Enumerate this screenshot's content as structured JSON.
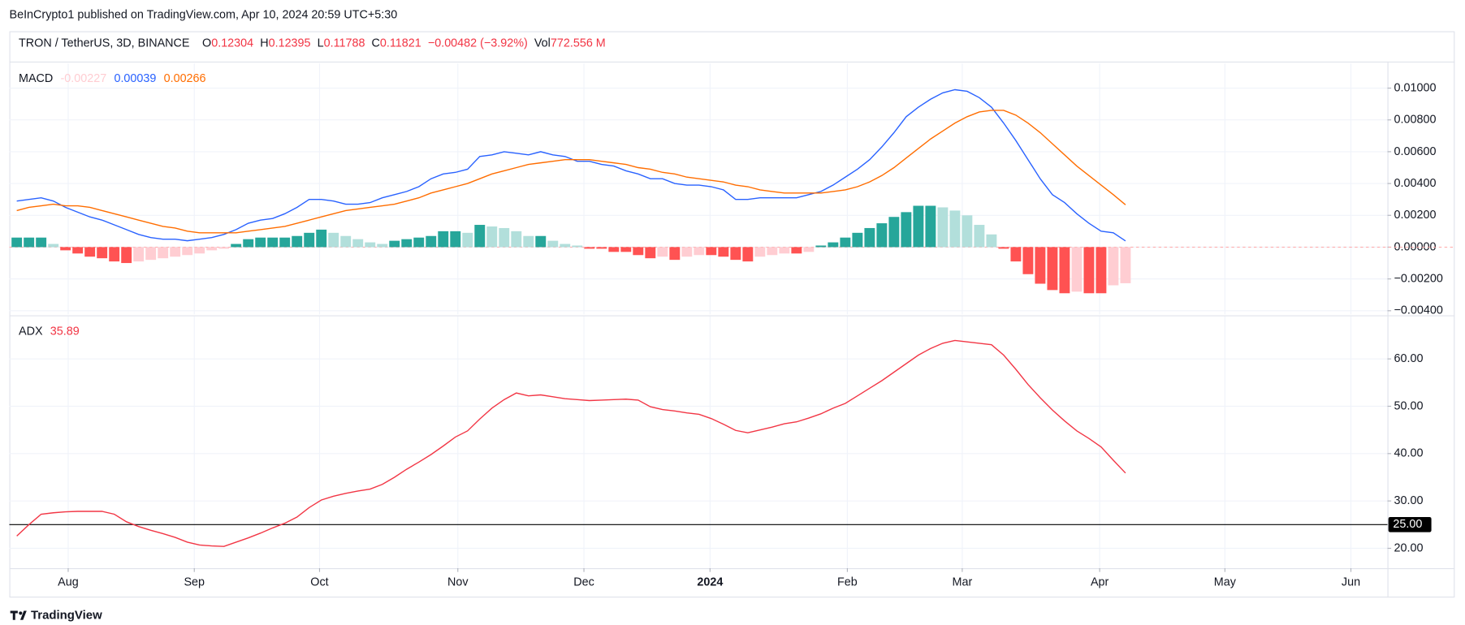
{
  "header": {
    "attribution": "BeInCrypto1 published on TradingView.com, Apr 10, 2024 20:59 UTC+5:30",
    "symbol": "TRON / TetherUS, 3D, BINANCE",
    "ohlc": [
      {
        "label": "O",
        "value": "0.12304"
      },
      {
        "label": "H",
        "value": "0.12395"
      },
      {
        "label": "L",
        "value": "0.11788"
      },
      {
        "label": "C",
        "value": "0.11821"
      }
    ],
    "change": "−0.00482 (−3.92%)",
    "volume_label": "Vol",
    "volume": "772.556 M"
  },
  "footer": {
    "brand": "TradingView"
  },
  "chart_data": [
    {
      "type": "macd",
      "title": "MACD",
      "xlim": [
        -0.61,
        112.5
      ],
      "ylim": [
        -0.00423,
        0.01155
      ],
      "yticks": [
        {
          "value": -0.004,
          "label": "−0.00400"
        },
        {
          "value": -0.002,
          "label": "−0.00200"
        },
        {
          "value": 0,
          "label": "0.00000"
        },
        {
          "value": 0.002,
          "label": "0.00200"
        },
        {
          "value": 0.004,
          "label": "0.00400"
        },
        {
          "value": 0.006,
          "label": "0.00600"
        },
        {
          "value": 0.008,
          "label": "0.00800"
        },
        {
          "value": 0.01,
          "label": "0.01000"
        }
      ],
      "grid": true,
      "series": [
        {
          "style": "histogram",
          "color": "#ffcdd2",
          "colors": [
            "#26a69a",
            "#b2dfdb",
            "#ff5252",
            "#ffcdd2"
          ],
          "values": [
            0.0006,
            0.0006,
            0.0006,
            0.0002,
            -0.0002,
            -0.0004,
            -0.0006,
            -0.0007,
            -0.0009,
            -0.001,
            -0.0009,
            -0.0008,
            -0.0007,
            -0.0006,
            -0.0005,
            -0.0004,
            -0.0002,
            -0.0001,
            0.0002,
            0.0005,
            0.0006,
            0.0006,
            0.0006,
            0.0007,
            0.0009,
            0.0011,
            0.0009,
            0.0007,
            0.0005,
            0.0003,
            0.0002,
            0.0004,
            0.0005,
            0.0006,
            0.0007,
            0.001,
            0.001,
            0.0009,
            0.0014,
            0.0013,
            0.0012,
            0.001,
            0.0007,
            0.0007,
            0.0004,
            0.0002,
            0.0001,
            -0.0001,
            -0.0001,
            -0.0003,
            -0.0003,
            -0.0005,
            -0.0007,
            -0.0006,
            -0.0008,
            -0.0006,
            -0.0005,
            -0.0005,
            -0.0006,
            -0.0008,
            -0.0009,
            -0.0006,
            -0.0005,
            -0.0004,
            -0.0004,
            -0.0003,
            0.0001,
            0.0003,
            0.0006,
            0.0009,
            0.0012,
            0.0015,
            0.0019,
            0.0022,
            0.0026,
            0.0026,
            0.0025,
            0.0023,
            0.002,
            0.0014,
            0.0008,
            -0.0001,
            -0.0009,
            -0.0017,
            -0.0023,
            -0.0027,
            -0.0029,
            -0.0028,
            -0.0029,
            -0.0029,
            -0.0024,
            -0.00227
          ]
        },
        {
          "style": "line",
          "color": "#2962ff",
          "values": [
            0.0029,
            0.003,
            0.0031,
            0.0029,
            0.0025,
            0.0022,
            0.0019,
            0.0017,
            0.0014,
            0.0011,
            0.0008,
            0.0006,
            0.0005,
            0.0005,
            0.0004,
            0.0005,
            0.0006,
            0.0008,
            0.0011,
            0.0015,
            0.0017,
            0.0018,
            0.0021,
            0.0025,
            0.003,
            0.003,
            0.0029,
            0.0027,
            0.0027,
            0.0028,
            0.0031,
            0.0033,
            0.0035,
            0.0038,
            0.0043,
            0.0046,
            0.0047,
            0.0049,
            0.0057,
            0.0058,
            0.006,
            0.0059,
            0.0058,
            0.006,
            0.0058,
            0.0057,
            0.0054,
            0.0054,
            0.0052,
            0.0051,
            0.0048,
            0.0046,
            0.0043,
            0.0043,
            0.004,
            0.0039,
            0.0039,
            0.0038,
            0.0036,
            0.003,
            0.003,
            0.0031,
            0.0031,
            0.0031,
            0.0031,
            0.0033,
            0.0035,
            0.0039,
            0.0044,
            0.0049,
            0.0055,
            0.0063,
            0.0072,
            0.0082,
            0.0088,
            0.0093,
            0.0097,
            0.0099,
            0.0098,
            0.0094,
            0.0088,
            0.0078,
            0.0067,
            0.0055,
            0.0043,
            0.0033,
            0.0028,
            0.0021,
            0.0015,
            0.001,
            0.0009,
            0.00039
          ]
        },
        {
          "style": "line",
          "color": "#ff6d00",
          "values": [
            0.0023,
            0.0025,
            0.0026,
            0.0027,
            0.0026,
            0.0026,
            0.0025,
            0.0023,
            0.0021,
            0.0019,
            0.0017,
            0.0015,
            0.0013,
            0.0012,
            0.001,
            0.0009,
            0.0009,
            0.0009,
            0.0009,
            0.001,
            0.0011,
            0.0012,
            0.0013,
            0.0015,
            0.0017,
            0.0019,
            0.0021,
            0.0023,
            0.0024,
            0.0025,
            0.0026,
            0.0027,
            0.0029,
            0.0031,
            0.0034,
            0.0036,
            0.0038,
            0.004,
            0.0043,
            0.0046,
            0.0048,
            0.005,
            0.0052,
            0.0053,
            0.0054,
            0.0055,
            0.0055,
            0.0055,
            0.0054,
            0.0053,
            0.0052,
            0.005,
            0.0049,
            0.0047,
            0.0046,
            0.0044,
            0.0043,
            0.0042,
            0.0041,
            0.0039,
            0.0038,
            0.0036,
            0.0035,
            0.0034,
            0.0034,
            0.0034,
            0.0034,
            0.0035,
            0.0036,
            0.0038,
            0.0041,
            0.0045,
            0.005,
            0.0056,
            0.0062,
            0.0068,
            0.0073,
            0.0078,
            0.0082,
            0.0085,
            0.0086,
            0.0086,
            0.0083,
            0.0078,
            0.0072,
            0.0065,
            0.0058,
            0.0051,
            0.0045,
            0.0039,
            0.0033,
            0.00266
          ]
        }
      ]
    },
    {
      "type": "adx",
      "title": "ADX",
      "xlim": [
        -0.61,
        112.5
      ],
      "xticks": [
        {
          "value": 4.22,
          "label": "Aug"
        },
        {
          "value": 14.57,
          "label": "Sep"
        },
        {
          "value": 24.85,
          "label": "Oct"
        },
        {
          "value": 36.2,
          "label": "Nov"
        },
        {
          "value": 46.55,
          "label": "Dec"
        },
        {
          "value": 56.9,
          "label": "2024"
        },
        {
          "value": 68.17,
          "label": "Feb"
        },
        {
          "value": 77.6,
          "label": "Mar"
        },
        {
          "value": 88.88,
          "label": "Apr"
        },
        {
          "value": 99.16,
          "label": "May"
        },
        {
          "value": 109.5,
          "label": "Jun"
        }
      ],
      "ylim": [
        15.8,
        69
      ],
      "yticks": [
        {
          "value": 20,
          "label": "20.00"
        },
        {
          "value": 30,
          "label": "30.00"
        },
        {
          "value": 40,
          "label": "40.00"
        },
        {
          "value": 50,
          "label": "50.00"
        },
        {
          "value": 60,
          "label": "60.00"
        }
      ],
      "grid": true,
      "level": {
        "value": 25,
        "label": "25.00"
      },
      "level_color": "#000000",
      "series": [
        {
          "style": "line",
          "color": "#f23645",
          "values": [
            22.6,
            25.0,
            27.2,
            27.5,
            27.7,
            27.8,
            27.8,
            27.8,
            27.2,
            25.6,
            24.6,
            23.8,
            23.1,
            22.3,
            21.3,
            20.7,
            20.5,
            20.4,
            21.3,
            22.2,
            23.2,
            24.3,
            25.3,
            26.6,
            28.6,
            30.2,
            31.0,
            31.6,
            32.1,
            32.5,
            33.5,
            35.0,
            36.7,
            38.2,
            39.8,
            41.6,
            43.5,
            44.8,
            47.3,
            49.6,
            51.4,
            52.8,
            52.2,
            52.4,
            52.0,
            51.6,
            51.4,
            51.2,
            51.3,
            51.4,
            51.5,
            51.3,
            49.9,
            49.3,
            49.0,
            48.6,
            48.3,
            47.4,
            46.2,
            44.9,
            44.4,
            45.0,
            45.6,
            46.3,
            46.7,
            47.5,
            48.4,
            49.6,
            50.6,
            52.2,
            53.8,
            55.4,
            57.2,
            59.0,
            60.8,
            62.2,
            63.3,
            63.9,
            63.6,
            63.3,
            63.0,
            60.8,
            57.8,
            54.6,
            51.8,
            49.2,
            46.9,
            44.8,
            43.2,
            41.4,
            38.6,
            35.89
          ]
        }
      ]
    }
  ]
}
